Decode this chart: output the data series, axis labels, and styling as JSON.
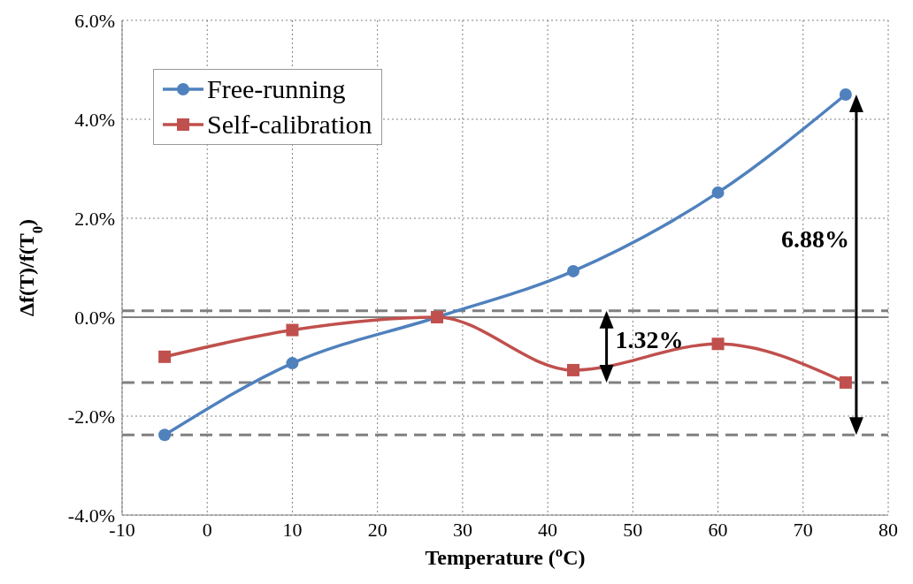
{
  "chart_data": {
    "type": "line",
    "xlabel": "Temperature ($^{o}$C)",
    "ylabel": "Δf(T)/f(T$_{0}$)",
    "xlim": [
      -10,
      80
    ],
    "xticks": [
      -10,
      0,
      10,
      20,
      30,
      40,
      50,
      60,
      70,
      80
    ],
    "ylim": [
      -4,
      6
    ],
    "yticks": [
      {
        "value": -4,
        "label": "-4.0%"
      },
      {
        "value": -2,
        "label": "-2.0%"
      },
      {
        "value": 0,
        "label": "0.0%"
      },
      {
        "value": 2,
        "label": "2.0%"
      },
      {
        "value": 4,
        "label": "4.0%"
      },
      {
        "value": 6,
        "label": "6.0%"
      }
    ],
    "x": [
      -5,
      10,
      27,
      43,
      60,
      75
    ],
    "series": [
      {
        "name": "Free-running",
        "color": "#4f81bd",
        "values": [
          -2.38,
          -0.93,
          0,
          0.93,
          2.52,
          4.5
        ],
        "marker": "circle"
      },
      {
        "name": "Self-calibration",
        "color": "#c0504d",
        "values": [
          -0.8,
          -0.26,
          0,
          -1.07,
          -0.54,
          -1.32
        ],
        "marker": "square"
      }
    ],
    "ref_lines": [
      {
        "axis": "y",
        "value": 0,
        "color": "#808080",
        "line_style": "solid"
      },
      {
        "axis": "y",
        "value": -2.38,
        "color": "#808080",
        "line_style": "dashed"
      },
      {
        "axis": "y",
        "value": 0.13,
        "color": "#808080",
        "line_style": "dashed"
      },
      {
        "axis": "y",
        "value": -1.32,
        "color": "#808080",
        "line_style": "dashed"
      }
    ],
    "annotations": [
      "6.88%",
      "1.32%"
    ],
    "grid": true,
    "legend": "top left",
    "line_style": "solid"
  }
}
